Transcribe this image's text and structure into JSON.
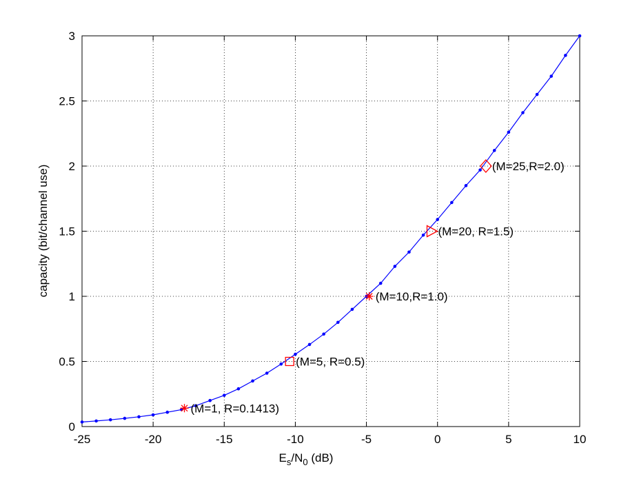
{
  "chart_data": {
    "type": "line",
    "xlabel": [
      "E",
      "s",
      "/N",
      "0",
      " (dB)"
    ],
    "ylabel": "capacity (bit/channel use)",
    "xlim": [
      -25,
      10
    ],
    "ylim": [
      0,
      3
    ],
    "xticks": [
      -25,
      -20,
      -15,
      -10,
      -5,
      0,
      5,
      10
    ],
    "yticks": [
      0,
      0.5,
      1,
      1.5,
      2,
      2.5,
      3
    ],
    "grid": true,
    "series": [
      {
        "color": "#0000ff",
        "x": [
          -25,
          -24,
          -23,
          -22,
          -21,
          -20,
          -19,
          -18,
          -17,
          -16,
          -15,
          -14,
          -13,
          -12,
          -11,
          -10,
          -9,
          -8,
          -7,
          -6,
          -5,
          -4,
          -3,
          -2,
          -1,
          0,
          1,
          2,
          3,
          4,
          5,
          6,
          7,
          8,
          9,
          10
        ],
        "values": [
          0.035,
          0.043,
          0.052,
          0.063,
          0.075,
          0.09,
          0.11,
          0.13,
          0.16,
          0.2,
          0.24,
          0.29,
          0.35,
          0.41,
          0.48,
          0.555,
          0.63,
          0.71,
          0.8,
          0.9,
          1.0,
          1.1,
          1.23,
          1.34,
          1.47,
          1.59,
          1.72,
          1.85,
          1.97,
          2.12,
          2.26,
          2.41,
          2.55,
          2.69,
          2.85,
          3.0
        ]
      }
    ],
    "annotations": [
      {
        "x": -17.8,
        "y": 0.1413,
        "marker": "star",
        "color": "#ff0000",
        "label": "(M=1, R=0.1413)"
      },
      {
        "x": -10.4,
        "y": 0.5,
        "marker": "square",
        "color": "#ff0000",
        "label": "(M=5, R=0.5)"
      },
      {
        "x": -4.8,
        "y": 1.0,
        "marker": "star",
        "color": "#ff0000",
        "label": "(M=10,R=1.0)"
      },
      {
        "x": -0.4,
        "y": 1.5,
        "marker": "triangle-right",
        "color": "#ff0000",
        "label": "(M=20, R=1.5)"
      },
      {
        "x": 3.4,
        "y": 2.0,
        "marker": "diamond",
        "color": "#ff0000",
        "label": "(M=25,R=2.0)"
      }
    ]
  }
}
